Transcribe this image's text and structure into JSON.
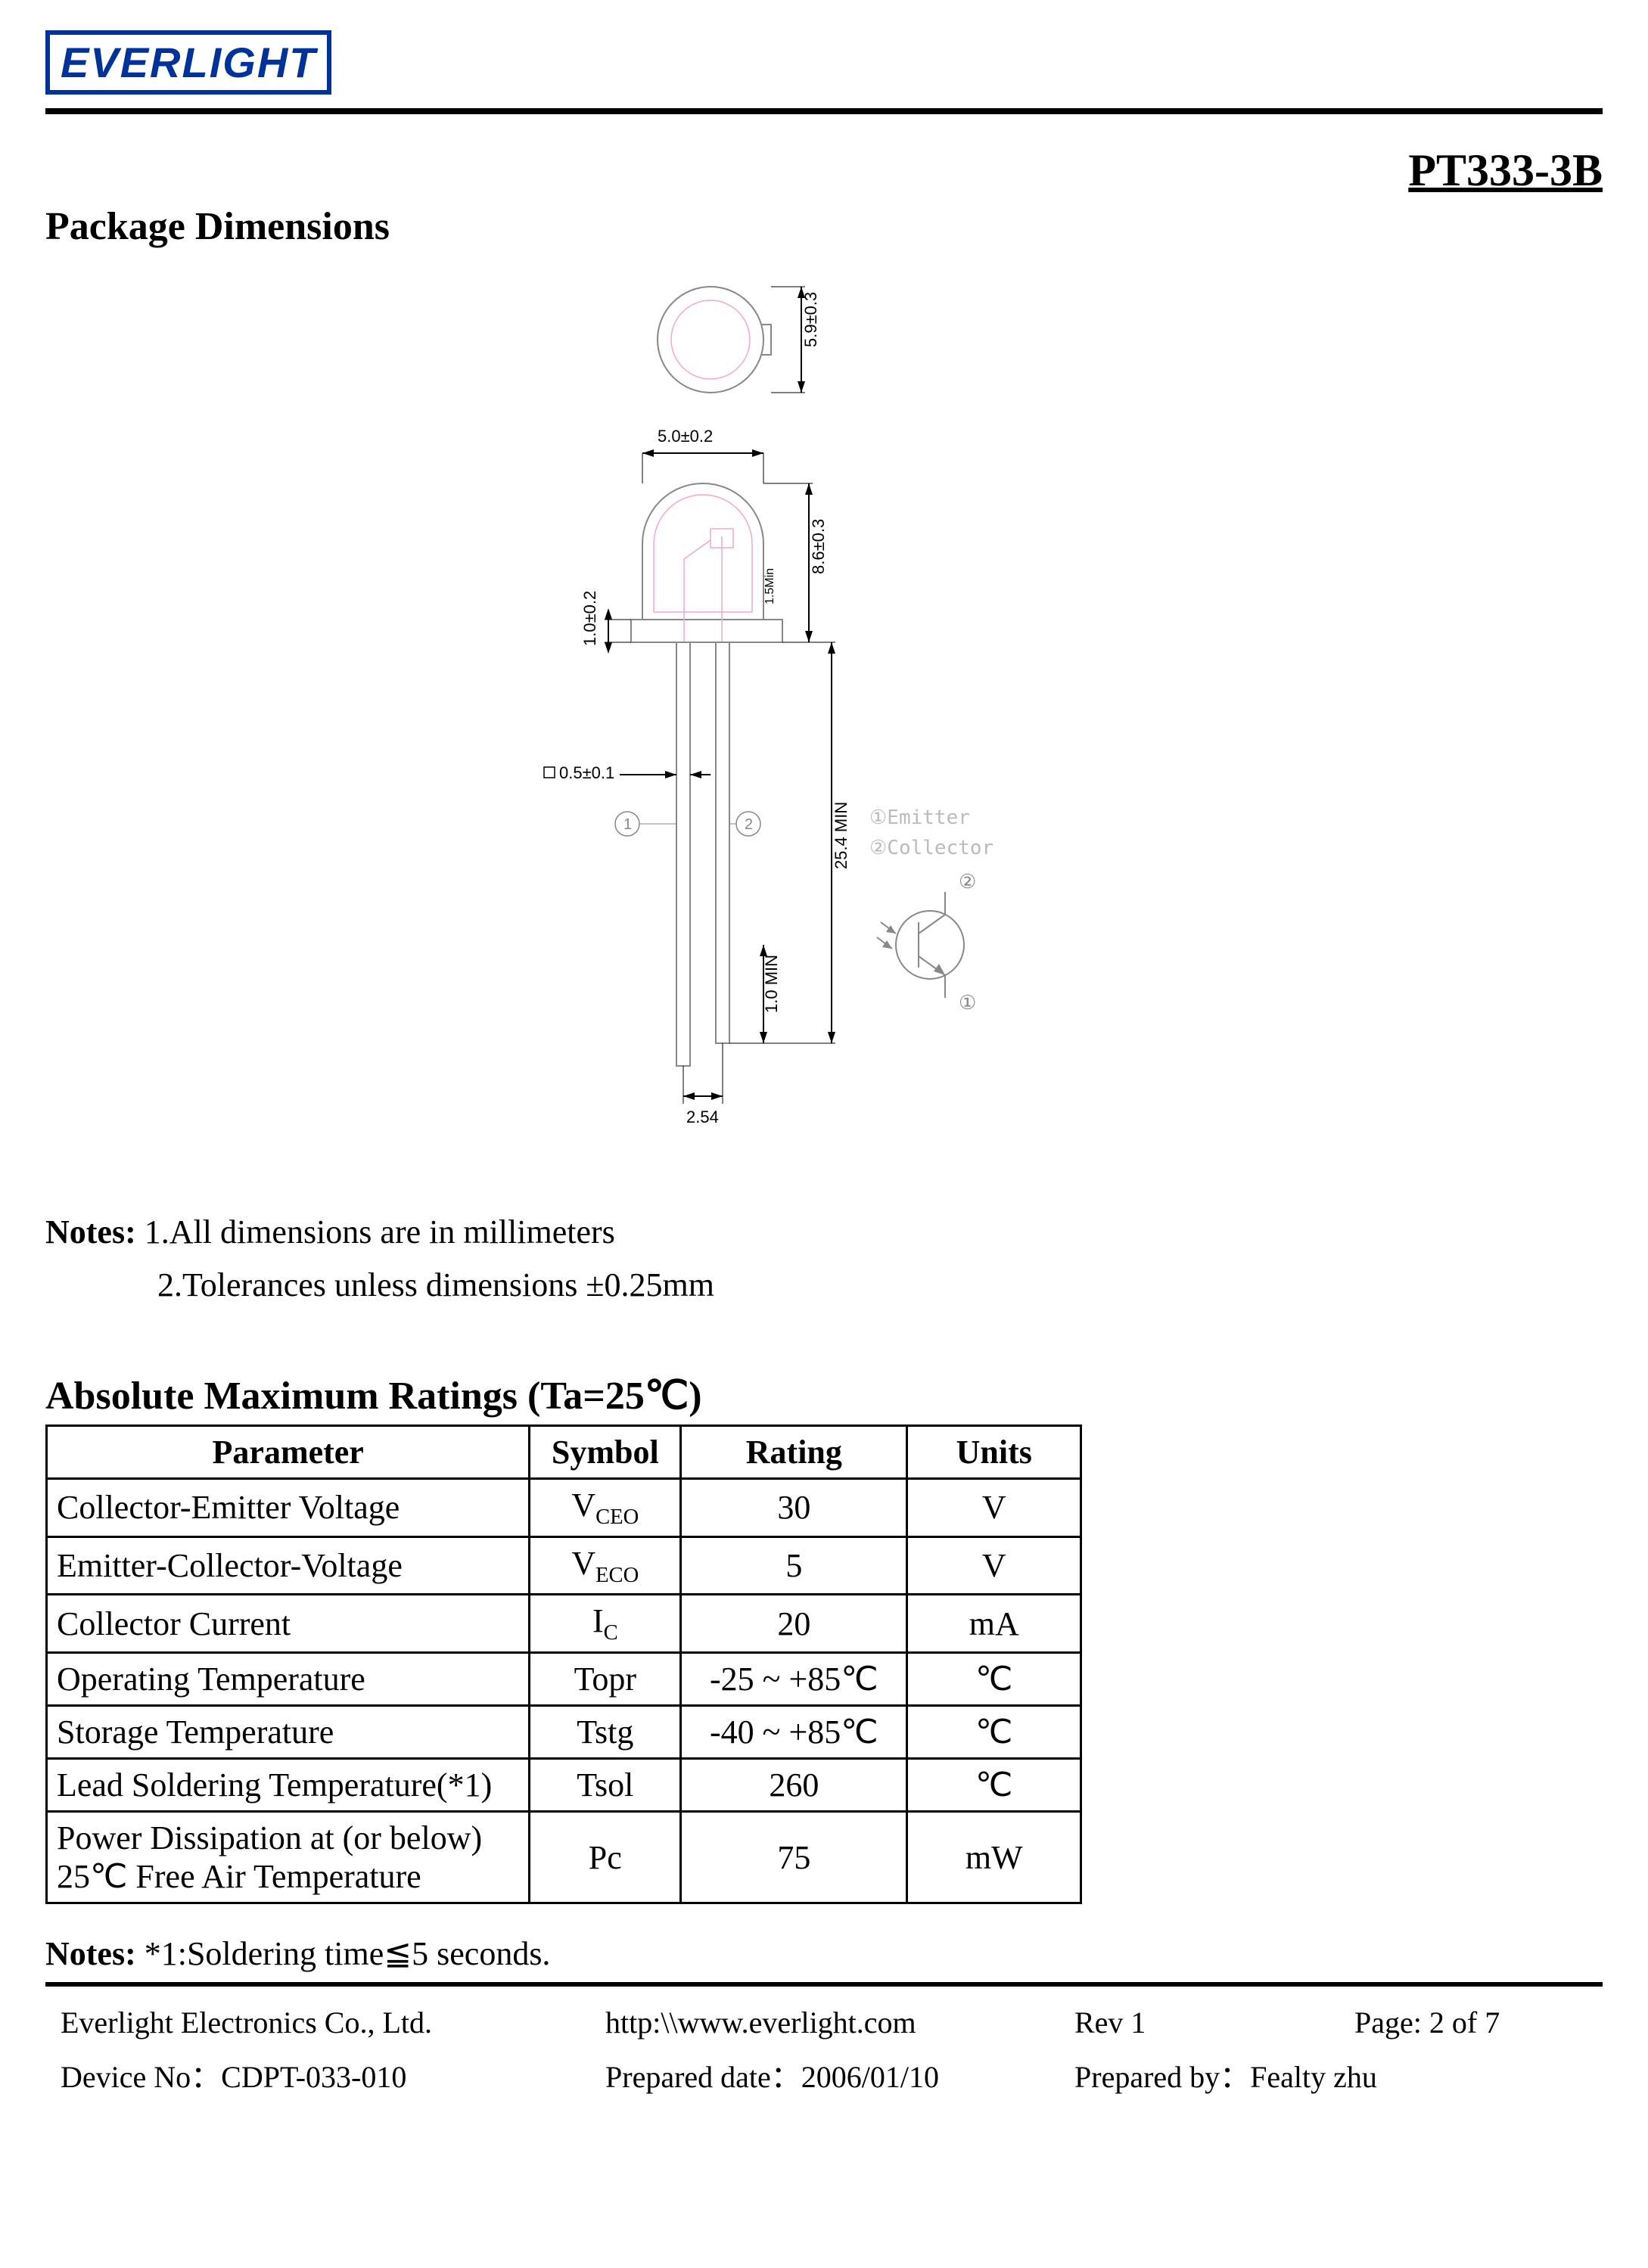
{
  "logo_text": "EVERLIGHT",
  "part_number": "PT333-3B",
  "section1_title": "Package Dimensions",
  "diagram": {
    "stroke_dim": "#000000",
    "stroke_outline": "#888888",
    "stroke_pink": "#f4a6d0",
    "font_family": "Arial, sans-serif",
    "top_dim": "5.9±0.3",
    "width_dim": "5.0±0.2",
    "body_h_dim": "8.6±0.3",
    "flange_dim": "1.0±0.2",
    "inner_dim": "1.5Min",
    "lead_w_dim": "0.5±0.1",
    "lead_len_dim": "25.4 MIN",
    "lead_gap_dim": "1.0 MIN",
    "pitch_dim": "2.54",
    "pin1_label": "1",
    "pin2_label": "2",
    "legend1": "①Emitter",
    "legend2": "②Collector",
    "sym1": "①",
    "sym2": "②"
  },
  "notes": {
    "label": "Notes:",
    "line1": " 1.All dimensions are in millimeters",
    "line2": "2.Tolerances unless dimensions ±0.25mm"
  },
  "ratings_title": "Absolute Maximum Ratings (Ta=25℃)",
  "table": {
    "headers": [
      "Parameter",
      "Symbol",
      "Rating",
      "Units"
    ],
    "rows": [
      {
        "param": "Collector-Emitter Voltage",
        "sym_main": "V",
        "sym_sub": "CEO",
        "rating": "30",
        "units": "V"
      },
      {
        "param": "Emitter-Collector-Voltage",
        "sym_main": "V",
        "sym_sub": "ECO",
        "rating": "5",
        "units": "V"
      },
      {
        "param": "Collector Current",
        "sym_main": "I",
        "sym_sub": "C",
        "rating": "20",
        "units": "mA"
      },
      {
        "param": "Operating Temperature",
        "sym_main": "Topr",
        "sym_sub": "",
        "rating": "-25 ~ +85℃",
        "units": "℃"
      },
      {
        "param": "Storage Temperature",
        "sym_main": "Tstg",
        "sym_sub": "",
        "rating": "-40 ~ +85℃",
        "units": "℃"
      },
      {
        "param": "Lead Soldering Temperature(*1)",
        "sym_main": "Tsol",
        "sym_sub": "",
        "rating": "260",
        "units": "℃"
      },
      {
        "param": "Power Dissipation at (or below) 25℃  Free Air Temperature",
        "sym_main": "Pc",
        "sym_sub": "",
        "rating": "75",
        "units": "mW"
      }
    ]
  },
  "notes2": {
    "label": "Notes:",
    "text": " *1:Soldering time≦5 seconds."
  },
  "footer": {
    "company": "Everlight Electronics Co., Ltd.",
    "url": "http:\\\\www.everlight.com",
    "rev": "Rev 1",
    "page": "Page: 2 of 7",
    "device": "Device No：CDPT-033-010",
    "prepdate": "Prepared date：2006/01/10",
    "prepby": "Prepared by：Fealty zhu"
  }
}
